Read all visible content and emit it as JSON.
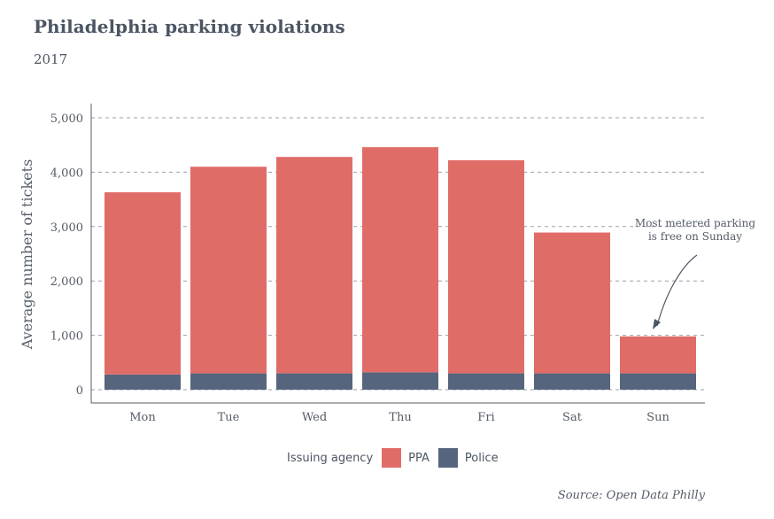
{
  "chart_data": {
    "type": "bar",
    "stacked": true,
    "title": "Philadelphia parking violations",
    "subtitle": "2017",
    "ylabel": "Average number of tickets",
    "xlabel": "",
    "categories": [
      "Mon",
      "Tue",
      "Wed",
      "Thu",
      "Fri",
      "Sat",
      "Sun"
    ],
    "series": [
      {
        "name": "Police",
        "color": "#56657d",
        "values": [
          280,
          300,
          300,
          320,
          300,
          300,
          300
        ]
      },
      {
        "name": "PPA",
        "color": "#e06c68",
        "values": [
          3350,
          3800,
          3980,
          4140,
          3920,
          2590,
          680
        ]
      }
    ],
    "ylim": [
      0,
      5000
    ],
    "yticks": [
      "0",
      "1,000",
      "2,000",
      "3,000",
      "4,000",
      "5,000"
    ],
    "ytick_values": [
      0,
      1000,
      2000,
      3000,
      4000,
      5000
    ],
    "grid": true,
    "legend_title": "Issuing agency",
    "legend_items": [
      "PPA",
      "Police"
    ],
    "legend_position": "bottom",
    "annotation": {
      "line1": "Most metered parking",
      "line2": "is free on Sunday"
    },
    "source": "Source: Open Data Philly"
  }
}
